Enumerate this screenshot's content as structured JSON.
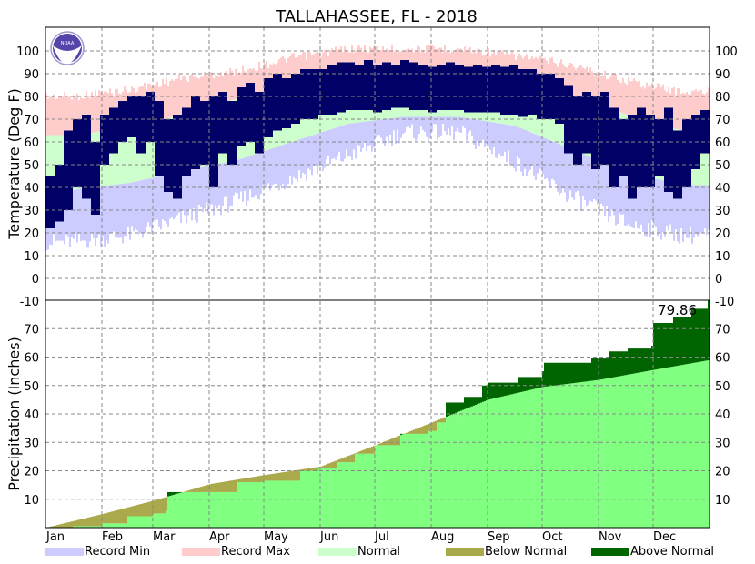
{
  "chart_data": [
    {
      "type": "bar",
      "title": "TALLAHASSEE, FL - 2018",
      "ylabel": "Temperature (Deg F)",
      "ylim": [
        -10,
        110
      ],
      "yticks": [
        -10,
        0,
        10,
        20,
        30,
        40,
        50,
        60,
        70,
        80,
        90,
        100
      ],
      "months": [
        "Jan",
        "Feb",
        "Mar",
        "Apr",
        "May",
        "Jun",
        "Jul",
        "Aug",
        "Sep",
        "Oct",
        "Nov",
        "Dec"
      ],
      "grid": true,
      "monthly_normal_high": [
        63,
        66,
        72,
        79,
        86,
        90,
        92,
        91,
        88,
        81,
        72,
        65
      ],
      "monthly_normal_low": [
        39,
        42,
        47,
        52,
        60,
        68,
        71,
        71,
        67,
        57,
        47,
        41
      ],
      "monthly_record_max": [
        82,
        85,
        90,
        93,
        99,
        103,
        103,
        103,
        100,
        96,
        89,
        84
      ],
      "monthly_record_min": [
        12,
        15,
        22,
        30,
        40,
        50,
        60,
        60,
        47,
        32,
        20,
        15
      ],
      "observed_interval_days": 5,
      "observed_high": [
        45,
        50,
        65,
        70,
        72,
        60,
        72,
        75,
        78,
        80,
        80,
        82,
        78,
        70,
        72,
        75,
        80,
        78,
        80,
        82,
        78,
        84,
        86,
        82,
        88,
        90,
        88,
        90,
        92,
        92,
        92,
        94,
        95,
        95,
        94,
        96,
        94,
        95,
        94,
        96,
        95,
        94,
        93,
        94,
        95,
        94,
        93,
        94,
        93,
        94,
        93,
        94,
        92,
        92,
        90,
        90,
        88,
        85,
        80,
        82,
        80,
        82,
        75,
        70,
        72,
        75,
        72,
        70,
        75,
        65,
        70,
        72,
        74
      ],
      "observed_low": [
        22,
        25,
        30,
        40,
        35,
        28,
        50,
        55,
        60,
        62,
        55,
        60,
        45,
        38,
        35,
        45,
        48,
        50,
        40,
        55,
        50,
        58,
        60,
        55,
        62,
        65,
        66,
        68,
        70,
        70,
        72,
        72,
        73,
        74,
        74,
        74,
        73,
        74,
        75,
        75,
        74,
        74,
        73,
        74,
        74,
        74,
        73,
        73,
        73,
        73,
        72,
        72,
        71,
        72,
        70,
        70,
        68,
        55,
        50,
        55,
        48,
        50,
        40,
        45,
        35,
        40,
        40,
        45,
        38,
        35,
        40,
        48,
        55
      ],
      "colors": {
        "record_min": "#ccccff",
        "record_max": "#ffcccc",
        "normal": "#ccffcc",
        "observed": "#000066"
      }
    },
    {
      "type": "area",
      "ylabel": "Precipitation (Inches)",
      "ylim": [
        0,
        80
      ],
      "yticks": [
        10,
        20,
        30,
        40,
        50,
        60,
        70
      ],
      "right_yticks": [
        -10,
        10,
        20,
        30,
        40,
        50,
        60,
        70
      ],
      "annotation": "79.86",
      "observed_cumulative": [
        [
          0,
          0
        ],
        [
          15,
          0.5
        ],
        [
          31,
          1.5
        ],
        [
          45,
          4
        ],
        [
          59,
          5
        ],
        [
          66,
          6
        ],
        [
          67,
          12.5
        ],
        [
          90,
          12.5
        ],
        [
          105,
          16
        ],
        [
          120,
          16.5
        ],
        [
          135,
          16.5
        ],
        [
          140,
          20
        ],
        [
          150,
          21
        ],
        [
          160,
          23
        ],
        [
          170,
          26
        ],
        [
          181,
          29
        ],
        [
          195,
          33
        ],
        [
          210,
          34
        ],
        [
          215,
          37
        ],
        [
          220,
          44
        ],
        [
          230,
          46
        ],
        [
          240,
          50
        ],
        [
          243,
          51
        ],
        [
          260,
          53
        ],
        [
          273,
          55
        ],
        [
          274,
          58
        ],
        [
          300,
          59.5
        ],
        [
          310,
          62
        ],
        [
          320,
          63
        ],
        [
          333,
          64
        ],
        [
          334,
          72
        ],
        [
          345,
          74
        ],
        [
          355,
          77
        ],
        [
          364,
          79.86
        ]
      ],
      "normal_cumulative": [
        [
          0,
          0
        ],
        [
          31,
          4.8
        ],
        [
          59,
          9.5
        ],
        [
          90,
          15.3
        ],
        [
          120,
          18.5
        ],
        [
          151,
          21.5
        ],
        [
          181,
          29
        ],
        [
          212,
          37
        ],
        [
          243,
          45
        ],
        [
          273,
          49.5
        ],
        [
          304,
          52
        ],
        [
          334,
          55.5
        ],
        [
          365,
          59
        ]
      ],
      "colors": {
        "normal": "#80ff80",
        "below_normal": "#aaaa4c",
        "above_normal": "#006400"
      }
    }
  ],
  "legend": [
    {
      "label": "Record Min",
      "color": "#ccccff"
    },
    {
      "label": "Record Max",
      "color": "#ffcccc"
    },
    {
      "label": "Normal",
      "color": "#ccffcc"
    },
    {
      "label": "Below Normal",
      "color": "#aaaa4c"
    },
    {
      "label": "Above Normal",
      "color": "#006400"
    }
  ],
  "logo": "NOAA"
}
